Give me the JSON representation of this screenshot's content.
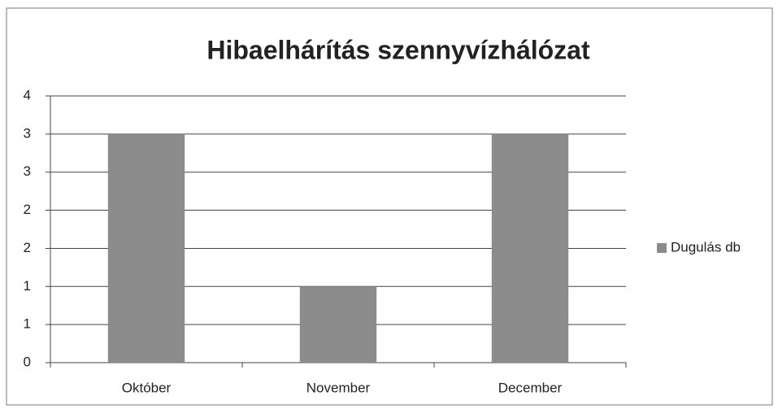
{
  "chart_data": {
    "type": "bar",
    "title": "Hibaelhárítás szennyvízhálózat",
    "categories": [
      "Október",
      "November",
      "December"
    ],
    "series": [
      {
        "name": "Dugulás db",
        "color": "#8c8c8c",
        "values": [
          3.429,
          1.143,
          3.429
        ]
      }
    ],
    "ylim": [
      0,
      4
    ],
    "yticks": [
      0,
      {
        "value": 0.571,
        "label": "1"
      },
      {
        "value": 1.143,
        "label": "1"
      },
      {
        "value": 1.714,
        "label": "2"
      },
      {
        "value": 2.286,
        "label": "2"
      },
      {
        "value": 2.857,
        "label": "3"
      },
      {
        "value": 3.429,
        "label": "3"
      },
      4
    ],
    "grid": true,
    "legend": "right"
  }
}
